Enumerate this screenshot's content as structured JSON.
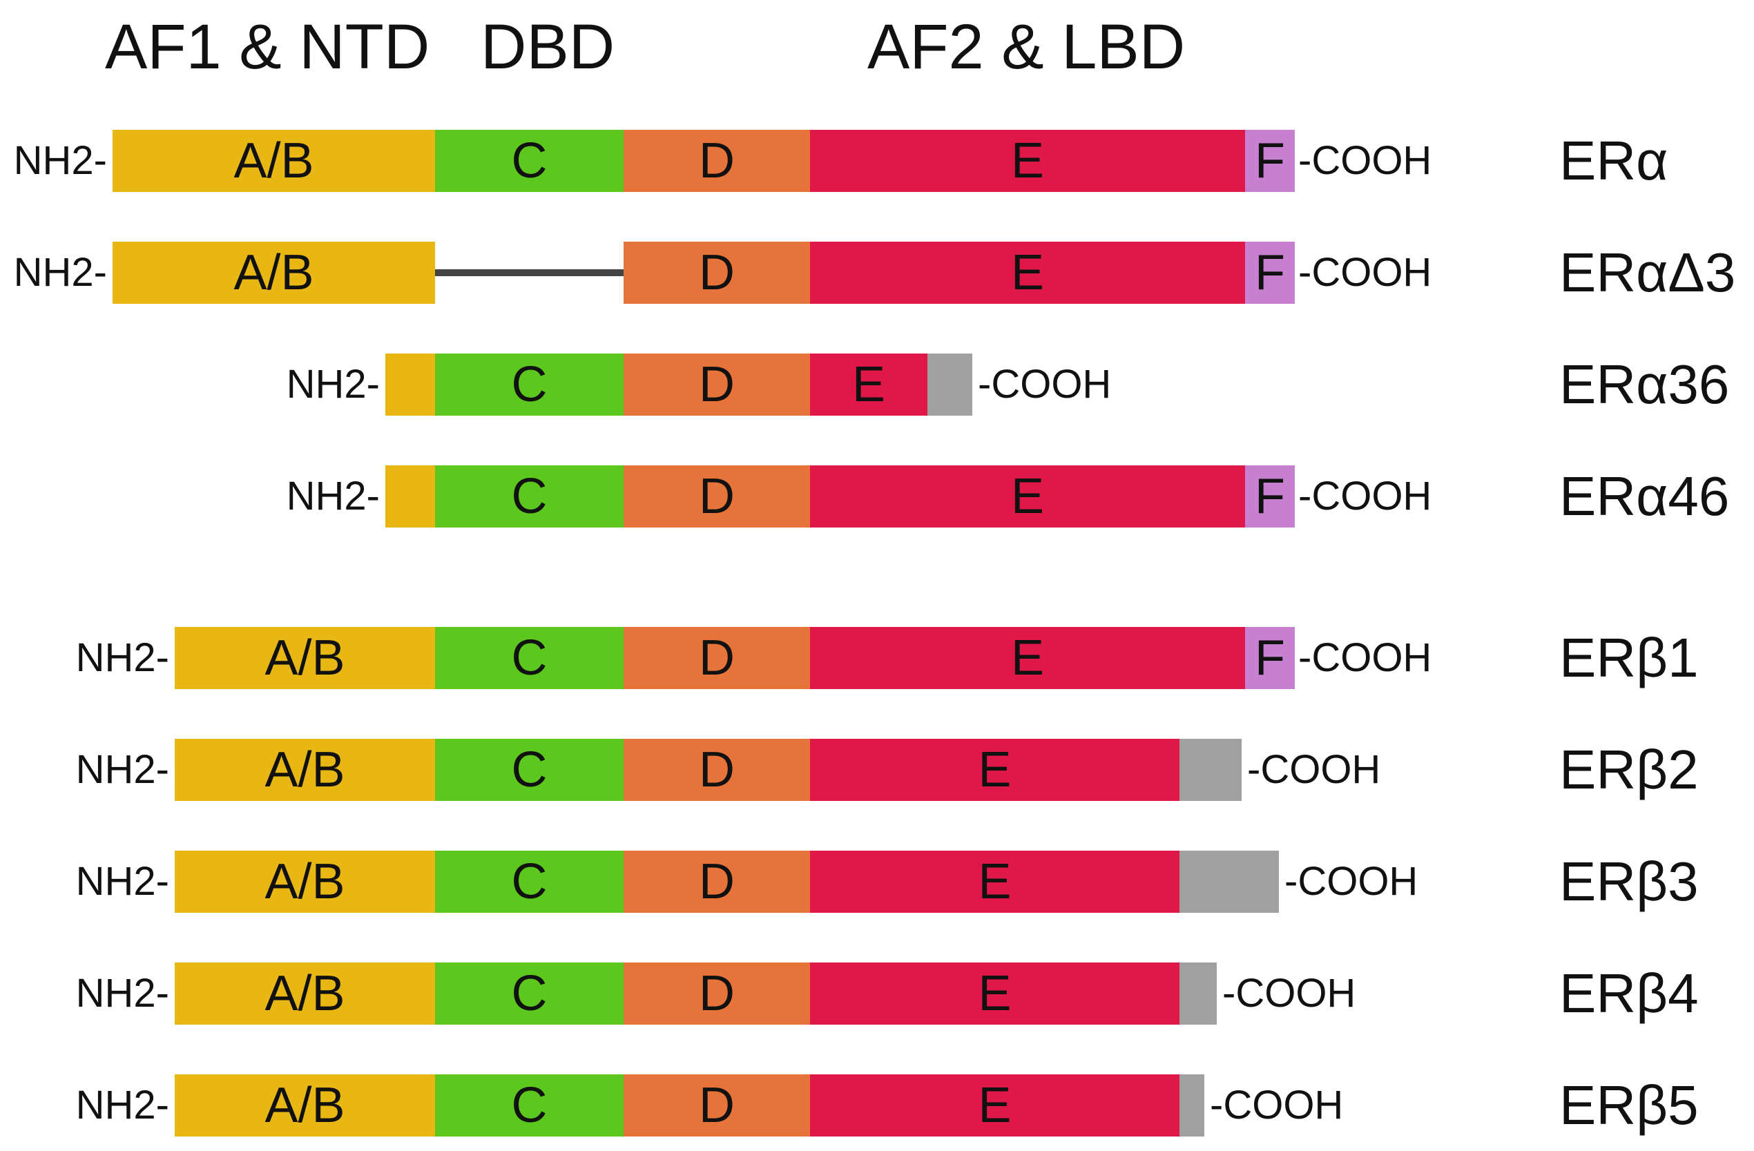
{
  "headers": {
    "ntd": "AF1 & NTD",
    "dbd": "DBD",
    "lbd": "AF2 & LBD"
  },
  "terminal_labels": {
    "n": "NH2-",
    "c": "-COOH"
  },
  "domain_colors": {
    "A/B": "#E8B714",
    "C": "#5CC71C",
    "D": "#E6743A",
    "E": "#E01749",
    "F": "#C77FD0",
    "tail": "#A0A0A0",
    "linker": "#444444"
  },
  "rows": [
    {
      "name": "ERα",
      "segments": [
        {
          "domain": "A/B",
          "label": "A/B"
        },
        {
          "domain": "C",
          "label": "C"
        },
        {
          "domain": "D",
          "label": "D"
        },
        {
          "domain": "E",
          "label": "E"
        },
        {
          "domain": "F",
          "label": "F"
        }
      ]
    },
    {
      "name": "ERαΔ3",
      "segments": [
        {
          "domain": "A/B",
          "label": "A/B"
        },
        {
          "domain": "linker",
          "label": ""
        },
        {
          "domain": "D",
          "label": "D"
        },
        {
          "domain": "E",
          "label": "E"
        },
        {
          "domain": "F",
          "label": "F"
        }
      ]
    },
    {
      "name": "ERα36",
      "segments": [
        {
          "domain": "A/B",
          "label": ""
        },
        {
          "domain": "C",
          "label": "C"
        },
        {
          "domain": "D",
          "label": "D"
        },
        {
          "domain": "E",
          "label": "E"
        },
        {
          "domain": "tail",
          "label": ""
        }
      ]
    },
    {
      "name": "ERα46",
      "segments": [
        {
          "domain": "A/B",
          "label": ""
        },
        {
          "domain": "C",
          "label": "C"
        },
        {
          "domain": "D",
          "label": "D"
        },
        {
          "domain": "E",
          "label": "E"
        },
        {
          "domain": "F",
          "label": "F"
        }
      ]
    },
    {
      "name": "ERβ1",
      "segments": [
        {
          "domain": "A/B",
          "label": "A/B"
        },
        {
          "domain": "C",
          "label": "C"
        },
        {
          "domain": "D",
          "label": "D"
        },
        {
          "domain": "E",
          "label": "E"
        },
        {
          "domain": "F",
          "label": "F"
        }
      ]
    },
    {
      "name": "ERβ2",
      "segments": [
        {
          "domain": "A/B",
          "label": "A/B"
        },
        {
          "domain": "C",
          "label": "C"
        },
        {
          "domain": "D",
          "label": "D"
        },
        {
          "domain": "E",
          "label": "E"
        },
        {
          "domain": "tail",
          "label": ""
        }
      ]
    },
    {
      "name": "ERβ3",
      "segments": [
        {
          "domain": "A/B",
          "label": "A/B"
        },
        {
          "domain": "C",
          "label": "C"
        },
        {
          "domain": "D",
          "label": "D"
        },
        {
          "domain": "E",
          "label": "E"
        },
        {
          "domain": "tail",
          "label": ""
        }
      ]
    },
    {
      "name": "ERβ4",
      "segments": [
        {
          "domain": "A/B",
          "label": "A/B"
        },
        {
          "domain": "C",
          "label": "C"
        },
        {
          "domain": "D",
          "label": "D"
        },
        {
          "domain": "E",
          "label": "E"
        },
        {
          "domain": "tail",
          "label": ""
        }
      ]
    },
    {
      "name": "ERβ5",
      "segments": [
        {
          "domain": "A/B",
          "label": "A/B"
        },
        {
          "domain": "C",
          "label": "C"
        },
        {
          "domain": "D",
          "label": "D"
        },
        {
          "domain": "E",
          "label": "E"
        },
        {
          "domain": "tail",
          "label": ""
        }
      ]
    }
  ]
}
